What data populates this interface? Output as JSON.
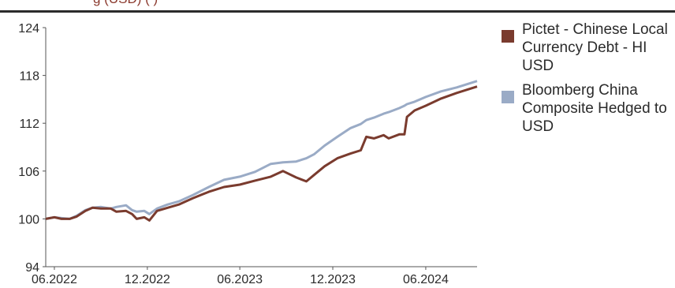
{
  "header": {
    "title_fragment": "g          (USD) (          )"
  },
  "chart_data": {
    "type": "line",
    "ylim": [
      94,
      124
    ],
    "yticks": [
      94,
      100,
      106,
      112,
      118,
      124
    ],
    "x_ticks": [
      {
        "label": "06.2022",
        "date": "2022-06-01"
      },
      {
        "label": "12.2022",
        "date": "2022-12-01"
      },
      {
        "label": "06.2023",
        "date": "2023-06-01"
      },
      {
        "label": "12.2023",
        "date": "2023-12-01"
      },
      {
        "label": "06.2024",
        "date": "2024-06-01"
      }
    ],
    "xlim": [
      "2022-05-15",
      "2024-09-10"
    ],
    "legend_position": "right",
    "grid": false,
    "series": [
      {
        "name": "Pictet - Chinese Local Currency Debt - HI USD",
        "color": "#7a3b2e",
        "points": [
          [
            "2022-05-15",
            100.0
          ],
          [
            "2022-06-01",
            100.2
          ],
          [
            "2022-06-15",
            100.0
          ],
          [
            "2022-07-01",
            100.0
          ],
          [
            "2022-07-15",
            100.3
          ],
          [
            "2022-08-01",
            101.0
          ],
          [
            "2022-08-15",
            101.4
          ],
          [
            "2022-09-01",
            101.3
          ],
          [
            "2022-09-20",
            101.3
          ],
          [
            "2022-10-01",
            100.9
          ],
          [
            "2022-10-20",
            101.0
          ],
          [
            "2022-11-01",
            100.6
          ],
          [
            "2022-11-10",
            100.0
          ],
          [
            "2022-11-25",
            100.2
          ],
          [
            "2022-12-05",
            99.8
          ],
          [
            "2022-12-20",
            101.0
          ],
          [
            "2023-01-10",
            101.4
          ],
          [
            "2023-02-01",
            101.8
          ],
          [
            "2023-03-01",
            102.6
          ],
          [
            "2023-04-01",
            103.4
          ],
          [
            "2023-05-01",
            104.0
          ],
          [
            "2023-06-01",
            104.3
          ],
          [
            "2023-07-01",
            104.8
          ],
          [
            "2023-08-01",
            105.3
          ],
          [
            "2023-08-25",
            106.0
          ],
          [
            "2023-09-20",
            105.2
          ],
          [
            "2023-10-10",
            104.7
          ],
          [
            "2023-10-25",
            105.5
          ],
          [
            "2023-11-15",
            106.6
          ],
          [
            "2023-12-10",
            107.6
          ],
          [
            "2024-01-05",
            108.2
          ],
          [
            "2024-01-25",
            108.6
          ],
          [
            "2024-02-05",
            110.3
          ],
          [
            "2024-02-20",
            110.1
          ],
          [
            "2024-03-10",
            110.5
          ],
          [
            "2024-03-20",
            110.1
          ],
          [
            "2024-04-10",
            110.6
          ],
          [
            "2024-04-20",
            110.6
          ],
          [
            "2024-04-25",
            112.8
          ],
          [
            "2024-05-10",
            113.6
          ],
          [
            "2024-06-01",
            114.2
          ],
          [
            "2024-07-01",
            115.1
          ],
          [
            "2024-08-01",
            115.8
          ],
          [
            "2024-09-10",
            116.6
          ]
        ]
      },
      {
        "name": "Bloomberg China Composite Hedged to USD",
        "color": "#9aabc6",
        "points": [
          [
            "2022-05-15",
            100.0
          ],
          [
            "2022-06-01",
            100.2
          ],
          [
            "2022-06-15",
            100.1
          ],
          [
            "2022-07-01",
            100.0
          ],
          [
            "2022-07-15",
            100.4
          ],
          [
            "2022-08-01",
            101.1
          ],
          [
            "2022-08-15",
            101.4
          ],
          [
            "2022-09-01",
            101.5
          ],
          [
            "2022-09-20",
            101.3
          ],
          [
            "2022-10-01",
            101.5
          ],
          [
            "2022-10-20",
            101.7
          ],
          [
            "2022-11-01",
            101.1
          ],
          [
            "2022-11-10",
            100.9
          ],
          [
            "2022-11-25",
            101.0
          ],
          [
            "2022-12-05",
            100.6
          ],
          [
            "2022-12-20",
            101.3
          ],
          [
            "2023-01-10",
            101.8
          ],
          [
            "2023-02-01",
            102.2
          ],
          [
            "2023-03-01",
            103.0
          ],
          [
            "2023-04-01",
            104.0
          ],
          [
            "2023-05-01",
            104.9
          ],
          [
            "2023-06-01",
            105.3
          ],
          [
            "2023-07-01",
            105.9
          ],
          [
            "2023-08-01",
            106.9
          ],
          [
            "2023-08-25",
            107.1
          ],
          [
            "2023-09-20",
            107.2
          ],
          [
            "2023-10-10",
            107.6
          ],
          [
            "2023-10-25",
            108.1
          ],
          [
            "2023-11-15",
            109.2
          ],
          [
            "2023-12-10",
            110.3
          ],
          [
            "2024-01-05",
            111.4
          ],
          [
            "2024-01-25",
            111.9
          ],
          [
            "2024-02-05",
            112.4
          ],
          [
            "2024-02-20",
            112.7
          ],
          [
            "2024-03-10",
            113.2
          ],
          [
            "2024-03-20",
            113.4
          ],
          [
            "2024-04-10",
            113.9
          ],
          [
            "2024-04-20",
            114.2
          ],
          [
            "2024-04-25",
            114.4
          ],
          [
            "2024-05-10",
            114.7
          ],
          [
            "2024-06-01",
            115.3
          ],
          [
            "2024-07-01",
            116.0
          ],
          [
            "2024-08-01",
            116.5
          ],
          [
            "2024-09-10",
            117.3
          ]
        ]
      }
    ]
  }
}
